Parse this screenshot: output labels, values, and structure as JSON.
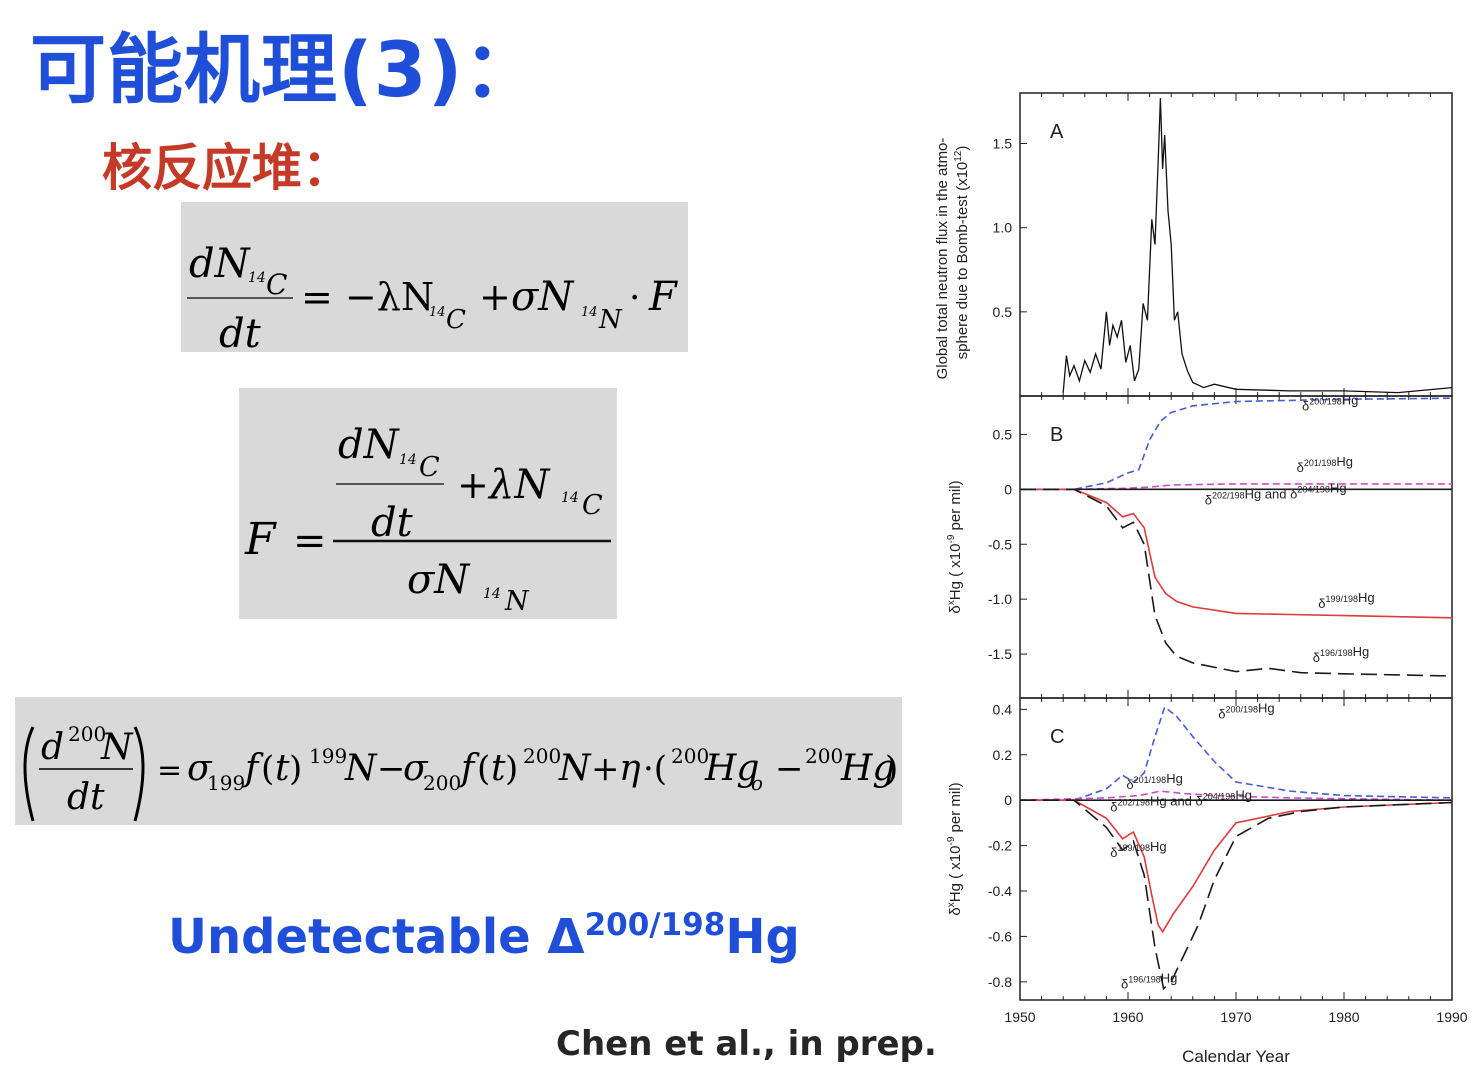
{
  "slide": {
    "title": "可能机理(3)：",
    "subtitle": "核反应堆：",
    "highlight_text": "Undetectable Δ",
    "highlight_sup": "200/198",
    "highlight_tail": "Hg",
    "credit": "Chen et al., in prep."
  },
  "equations": {
    "eq1": "dN14C/dt = −λN14C + σN14N · F",
    "eq2": "F = (dN14C/dt + λN14C) / σN14N",
    "eq3": "(d 200N / dt) = σ199 f(t) 199N − σ200 f(t) 200N + η·(200Hg0 − 200Hg)"
  },
  "chart_data": [
    {
      "type": "line",
      "panel": "A",
      "ylabel_line1": "Global total neutron flux in the atmo-",
      "ylabel_line2": "sphere due to Bomb-test (x10",
      "ylabel_sup": "12",
      "ylabel_tail": ")",
      "xlim": [
        1950,
        1990
      ],
      "ylim": [
        0,
        1.8
      ],
      "yticks": [
        "0.5",
        "1.0",
        "1.5"
      ],
      "series": [
        {
          "color": "#111111",
          "x": [
            1954.0,
            1954.3,
            1954.6,
            1955.0,
            1955.5,
            1956.0,
            1956.5,
            1957.0,
            1957.5,
            1958.0,
            1958.3,
            1958.6,
            1959.0,
            1959.4,
            1959.8,
            1960.2,
            1960.6,
            1961.0,
            1961.4,
            1961.8,
            1962.2,
            1962.5,
            1962.8,
            1963.0,
            1963.2,
            1963.4,
            1963.7,
            1964.0,
            1964.3,
            1964.6,
            1965.0,
            1965.5,
            1966.0,
            1967.0,
            1968.0,
            1970.0,
            1975.0,
            1980.0,
            1985.0,
            1990.0
          ],
          "y": [
            0.02,
            0.24,
            0.12,
            0.18,
            0.09,
            0.21,
            0.14,
            0.25,
            0.16,
            0.5,
            0.3,
            0.42,
            0.35,
            0.45,
            0.2,
            0.3,
            0.09,
            0.16,
            0.55,
            0.45,
            1.05,
            0.9,
            1.4,
            1.77,
            1.35,
            1.55,
            1.1,
            0.9,
            0.45,
            0.5,
            0.25,
            0.15,
            0.08,
            0.05,
            0.07,
            0.04,
            0.03,
            0.03,
            0.02,
            0.05
          ]
        }
      ]
    },
    {
      "type": "line",
      "panel": "B",
      "ylabel": "δ",
      "ylabel_sup1": "x",
      "ylabel_mid": "Hg ( x10",
      "ylabel_sup2": "-9",
      "ylabel_tail": " per mil)",
      "xlim": [
        1950,
        1990
      ],
      "ylim": [
        -1.9,
        0.85
      ],
      "yticks": [
        "0.5",
        "0",
        "-0.5",
        "-1.0",
        "-1.5"
      ],
      "series": [
        {
          "name": "δ200/198Hg",
          "color": "#4a5bd8",
          "dash": "dashed",
          "x": [
            1950,
            1955,
            1958,
            1960,
            1961,
            1962,
            1963,
            1964,
            1966,
            1970,
            1975,
            1980,
            1990
          ],
          "y": [
            0,
            0,
            0.06,
            0.15,
            0.18,
            0.45,
            0.62,
            0.7,
            0.76,
            0.8,
            0.81,
            0.82,
            0.83
          ]
        },
        {
          "name": "δ201/198Hg",
          "color": "#d04ad0",
          "dash": "dashed",
          "x": [
            1950,
            1955,
            1960,
            1962,
            1964,
            1970,
            1980,
            1990
          ],
          "y": [
            0,
            0,
            0.01,
            0.02,
            0.04,
            0.05,
            0.05,
            0.05
          ]
        },
        {
          "name": "δ202/198Hg and δ204/198Hg",
          "color": "#1a1a1a",
          "dash": "solid",
          "x": [
            1950,
            1990
          ],
          "y": [
            0,
            0
          ]
        },
        {
          "name": "δ199/198Hg",
          "color": "#e03a3a",
          "dash": "solid",
          "x": [
            1950,
            1955,
            1958,
            1959.5,
            1960.5,
            1961.5,
            1962.5,
            1963.5,
            1964.5,
            1966,
            1970,
            1975,
            1980,
            1990
          ],
          "y": [
            0,
            0,
            -0.12,
            -0.25,
            -0.22,
            -0.35,
            -0.8,
            -0.95,
            -1.02,
            -1.07,
            -1.13,
            -1.14,
            -1.15,
            -1.17
          ]
        },
        {
          "name": "δ196/198Hg",
          "color": "#1a1a1a",
          "dash": "longdash",
          "x": [
            1950,
            1955,
            1958,
            1959.5,
            1960.5,
            1961.5,
            1962.5,
            1963.5,
            1964.5,
            1966,
            1970,
            1973,
            1976,
            1980,
            1990
          ],
          "y": [
            0,
            0,
            -0.15,
            -0.35,
            -0.3,
            -0.5,
            -1.15,
            -1.4,
            -1.52,
            -1.58,
            -1.66,
            -1.63,
            -1.67,
            -1.68,
            -1.7
          ]
        }
      ]
    },
    {
      "type": "line",
      "panel": "C",
      "xlabel": "Calendar Year",
      "ylabel": "δ",
      "ylabel_sup1": "x",
      "ylabel_mid": "Hg ( x10",
      "ylabel_sup2": "-9",
      "ylabel_tail": " per mil)",
      "xlim": [
        1950,
        1990
      ],
      "ylim": [
        -0.88,
        0.45
      ],
      "xticks": [
        "1950",
        "1960",
        "1970",
        "1980",
        "1990"
      ],
      "yticks": [
        "0.4",
        "0.2",
        "0",
        "-0.2",
        "-0.4",
        "-0.6",
        "-0.8"
      ],
      "series": [
        {
          "name": "δ200/198Hg",
          "color": "#4a5bd8",
          "dash": "dashed",
          "x": [
            1950,
            1955,
            1958,
            1959.5,
            1960.5,
            1961.5,
            1962.5,
            1963.4,
            1964.5,
            1966,
            1968,
            1970,
            1975,
            1980,
            1990
          ],
          "y": [
            0,
            0,
            0.05,
            0.11,
            0.08,
            0.12,
            0.28,
            0.41,
            0.37,
            0.28,
            0.17,
            0.08,
            0.04,
            0.02,
            0.01
          ]
        },
        {
          "name": "δ201/198Hg",
          "color": "#d04ad0",
          "dash": "dashed",
          "x": [
            1950,
            1958,
            1961,
            1963,
            1965,
            1968,
            1975,
            1990
          ],
          "y": [
            0,
            0.01,
            0.02,
            0.04,
            0.03,
            0.02,
            0.01,
            0.0
          ]
        },
        {
          "name": "δ202/198Hg and δ204/198Hg",
          "color": "#1a1a1a",
          "dash": "solid",
          "x": [
            1950,
            1990
          ],
          "y": [
            0,
            0
          ]
        },
        {
          "name": "δ199/198Hg",
          "color": "#e03a3a",
          "dash": "solid",
          "x": [
            1950,
            1955,
            1958,
            1959.5,
            1960.5,
            1961.5,
            1962.2,
            1962.8,
            1963.2,
            1964.2,
            1966,
            1968,
            1970,
            1975,
            1980,
            1990
          ],
          "y": [
            0,
            0,
            -0.08,
            -0.17,
            -0.14,
            -0.25,
            -0.42,
            -0.55,
            -0.58,
            -0.5,
            -0.38,
            -0.22,
            -0.1,
            -0.05,
            -0.03,
            -0.01
          ]
        },
        {
          "name": "δ196/198Hg",
          "color": "#1a1a1a",
          "dash": "longdash",
          "x": [
            1950,
            1955,
            1958,
            1959.5,
            1960.5,
            1961.5,
            1962.5,
            1963.3,
            1964,
            1965,
            1966.5,
            1968,
            1970,
            1973,
            1976,
            1980,
            1985,
            1990
          ],
          "y": [
            0,
            0,
            -0.12,
            -0.22,
            -0.18,
            -0.33,
            -0.65,
            -0.83,
            -0.8,
            -0.7,
            -0.55,
            -0.35,
            -0.16,
            -0.08,
            -0.05,
            -0.03,
            -0.02,
            -0.01
          ]
        }
      ]
    }
  ]
}
